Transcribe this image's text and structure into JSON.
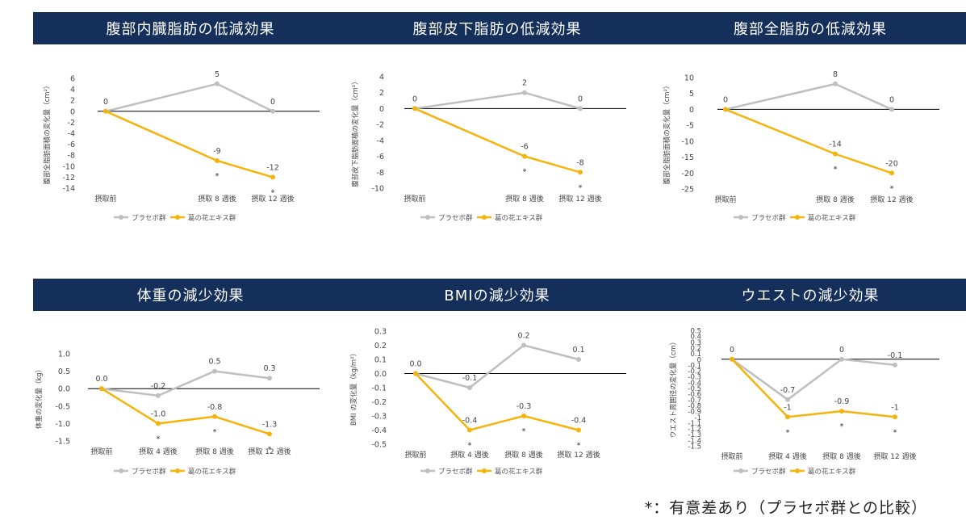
{
  "colors": {
    "header_bg": "#14305a",
    "placebo": "#bfbfbf",
    "extract": "#f5b40c",
    "zero_line": "#000000"
  },
  "legend": {
    "placebo": "プラセボ群",
    "extract": "葛の花エキス群"
  },
  "footnote": "*：有意差あり（プラセボ群との比較）",
  "chart_data": [
    {
      "type": "line",
      "title": "腹部内臓脂肪の低減効果",
      "ylabel": "腹部全脂肪面積の変化量（cm²）",
      "categories": [
        "摂取前",
        "摂取 8 週後",
        "摂取 12 週後"
      ],
      "ylim": [
        -14,
        6
      ],
      "yticks": [
        6,
        4,
        2,
        0,
        -2,
        -4,
        -6,
        -8,
        -10,
        -12,
        -14
      ],
      "series": [
        {
          "name": "プラセボ群",
          "values": [
            0,
            5,
            0
          ],
          "labels": [
            "0",
            "5",
            "0"
          ]
        },
        {
          "name": "葛の花エキス群",
          "values": [
            0,
            -9,
            -12
          ],
          "labels": [
            "",
            "-9",
            "-12"
          ],
          "significant": [
            false,
            true,
            true
          ]
        }
      ]
    },
    {
      "type": "line",
      "title": "腹部皮下脂肪の低減効果",
      "ylabel": "腹部皮下脂肪面積の変化量（cm²）",
      "categories": [
        "摂取前",
        "摂取 8 週後",
        "摂取 12 週後"
      ],
      "ylim": [
        -10,
        4
      ],
      "yticks": [
        4,
        2,
        0,
        -2,
        -4,
        -6,
        -8,
        -10
      ],
      "series": [
        {
          "name": "プラセボ群",
          "values": [
            0,
            2,
            0
          ],
          "labels": [
            "0",
            "2",
            "0"
          ]
        },
        {
          "name": "葛の花エキス群",
          "values": [
            0,
            -6,
            -8
          ],
          "labels": [
            "",
            "-6",
            "-8"
          ],
          "significant": [
            false,
            true,
            true
          ]
        }
      ]
    },
    {
      "type": "line",
      "title": "腹部全脂肪の低減効果",
      "ylabel": "腹部全脂肪面積の変化量（cm²）",
      "categories": [
        "摂取前",
        "摂取 8 週後",
        "摂取 12 週後"
      ],
      "ylim": [
        -25,
        10
      ],
      "yticks": [
        10,
        5,
        0,
        -5,
        -10,
        -15,
        -20,
        -25
      ],
      "series": [
        {
          "name": "プラセボ群",
          "values": [
            0,
            8,
            0
          ],
          "labels": [
            "0",
            "8",
            "0"
          ]
        },
        {
          "name": "葛の花エキス群",
          "values": [
            0,
            -14,
            -20
          ],
          "labels": [
            "",
            "-14",
            "-20"
          ],
          "significant": [
            false,
            true,
            true
          ]
        }
      ]
    },
    {
      "type": "line",
      "title": "体重の減少効果",
      "ylabel": "体重の変化量（kg）",
      "categories": [
        "摂取前",
        "摂取 4 週後",
        "摂取 8 週後",
        "摂取 12 週後"
      ],
      "ylim": [
        -1.5,
        1.0
      ],
      "yticks": [
        "1.0",
        "0.5",
        "0.0",
        "-0.5",
        "-1.0",
        "-1.5"
      ],
      "series": [
        {
          "name": "プラセボ群",
          "values": [
            0.0,
            -0.2,
            0.5,
            0.3
          ],
          "labels": [
            "0.0",
            "-0.2",
            "0.5",
            "0.3"
          ]
        },
        {
          "name": "葛の花エキス群",
          "values": [
            0.0,
            -1.0,
            -0.8,
            -1.3
          ],
          "labels": [
            "",
            "-1.0",
            "-0.8",
            "-1.3"
          ],
          "significant": [
            false,
            true,
            true,
            true
          ]
        }
      ]
    },
    {
      "type": "line",
      "title": "BMIの減少効果",
      "ylabel": "BMI の変化量（kg/m²）",
      "categories": [
        "摂取前",
        "摂取 4 週後",
        "摂取 8 週後",
        "摂取 12 週後"
      ],
      "ylim": [
        -0.5,
        0.3
      ],
      "yticks": [
        "0.3",
        "0.2",
        "0.1",
        "0.0",
        "-0.1",
        "-0.2",
        "-0.3",
        "-0.4",
        "-0.5"
      ],
      "series": [
        {
          "name": "プラセボ群",
          "values": [
            0.0,
            -0.1,
            0.2,
            0.1
          ],
          "labels": [
            "0.0",
            "-0.1",
            "0.2",
            "0.1"
          ]
        },
        {
          "name": "葛の花エキス群",
          "values": [
            0.0,
            -0.4,
            -0.3,
            -0.4
          ],
          "labels": [
            "",
            "-0.4",
            "-0.3",
            "-0.4"
          ],
          "significant": [
            false,
            true,
            true,
            true
          ]
        }
      ]
    },
    {
      "type": "line",
      "title": "ウエストの減少効果",
      "ylabel": "ウエスト周囲径の変化量（cm）",
      "categories": [
        "摂取前",
        "摂取 4 週後",
        "摂取 8 週後",
        "摂取 12 週後"
      ],
      "ylim": [
        -1.5,
        0.5
      ],
      "yticks": [
        "0.5",
        "0.4",
        "0.3",
        "0.2",
        "0.1",
        "0",
        "-0.1",
        "-0.2",
        "-0.3",
        "-0.4",
        "-0.5",
        "-0.6",
        "-0.7",
        "-0.8",
        "-0.9",
        "-1",
        "-1.1",
        "-1.2",
        "-1.3",
        "-1.4",
        "-1.5"
      ],
      "series": [
        {
          "name": "プラセボ群",
          "values": [
            0,
            -0.7,
            0,
            -0.1
          ],
          "labels": [
            "0",
            "-0.7",
            "0",
            "-0.1"
          ]
        },
        {
          "name": "葛の花エキス群",
          "values": [
            0,
            -1.0,
            -0.9,
            -1.0
          ],
          "labels": [
            "",
            "-1",
            "-0.9",
            "-1"
          ],
          "significant": [
            false,
            true,
            true,
            true
          ]
        }
      ]
    }
  ]
}
